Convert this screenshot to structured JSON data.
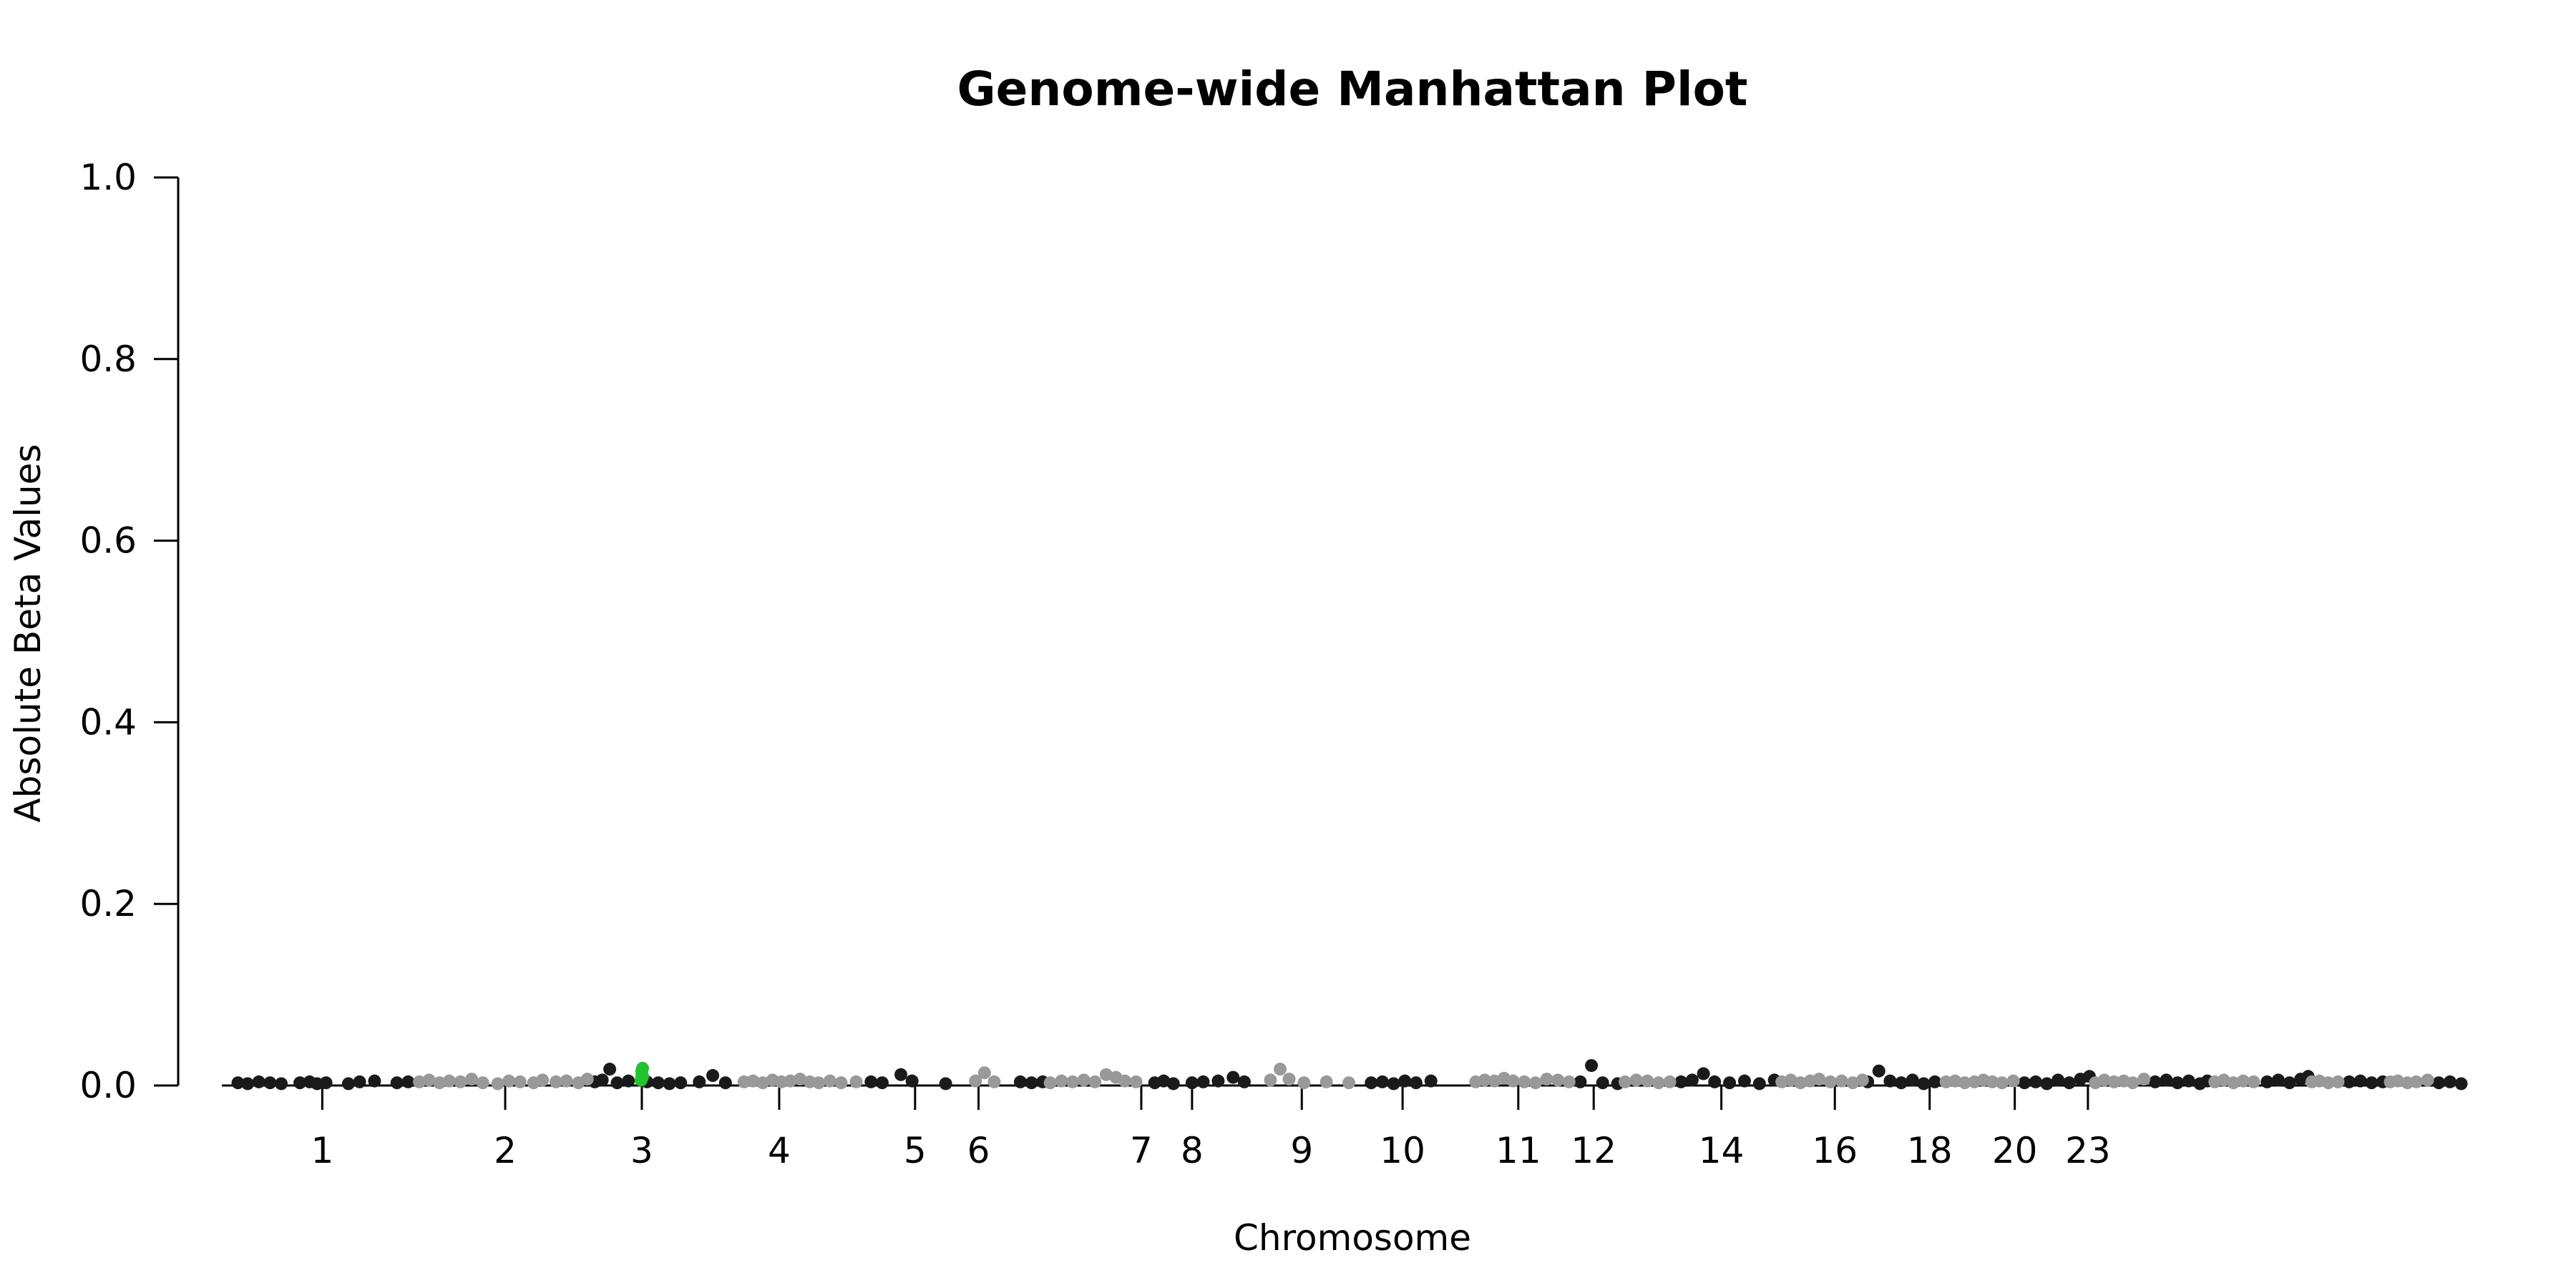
{
  "chart_data": {
    "type": "scatter",
    "title": "Genome-wide Manhattan Plot",
    "xlabel": "Chromosome",
    "ylabel": "Absolute Beta Values",
    "ylim": [
      0,
      1
    ],
    "yticks": [
      "0.0",
      "0.2",
      "0.4",
      "0.6",
      "0.8",
      "1.0"
    ],
    "xlim": [
      0,
      3000
    ],
    "xticks": [
      {
        "label": "1",
        "pos": 125
      },
      {
        "label": "2",
        "pos": 370
      },
      {
        "label": "3",
        "pos": 553
      },
      {
        "label": "4",
        "pos": 737
      },
      {
        "label": "5",
        "pos": 919
      },
      {
        "label": "6",
        "pos": 1004
      },
      {
        "label": "7",
        "pos": 1222
      },
      {
        "label": "8",
        "pos": 1290
      },
      {
        "label": "9",
        "pos": 1437
      },
      {
        "label": "10",
        "pos": 1572
      },
      {
        "label": "11",
        "pos": 1727
      },
      {
        "label": "12",
        "pos": 1828
      },
      {
        "label": "14",
        "pos": 1999
      },
      {
        "label": "16",
        "pos": 2151
      },
      {
        "label": "18",
        "pos": 2278
      },
      {
        "label": "20",
        "pos": 2392
      },
      {
        "label": "23",
        "pos": 2490
      }
    ],
    "chromosome_bounds": [
      0,
      250,
      490,
      690,
      880,
      1060,
      1230,
      1390,
      1530,
      1670,
      1810,
      1945,
      2080,
      2195,
      2300,
      2405,
      2500,
      2580,
      2660,
      2730,
      2790,
      2840,
      2895,
      2960
    ],
    "series": [
      {
        "color": "#1a1a1a",
        "points": [
          [
            12,
            0.003
          ],
          [
            25,
            0.002
          ],
          [
            40,
            0.004
          ],
          [
            55,
            0.003
          ],
          [
            70,
            0.002
          ],
          [
            95,
            0.003
          ],
          [
            108,
            0.004
          ],
          [
            118,
            0.002
          ],
          [
            130,
            0.003
          ],
          [
            160,
            0.002
          ],
          [
            175,
            0.004
          ],
          [
            195,
            0.005
          ],
          [
            225,
            0.003
          ],
          [
            240,
            0.004
          ],
          [
            490,
            0.004
          ],
          [
            500,
            0.006
          ],
          [
            510,
            0.018
          ],
          [
            520,
            0.003
          ],
          [
            535,
            0.005
          ],
          [
            560,
            0.004
          ],
          [
            575,
            0.003
          ],
          [
            590,
            0.002
          ],
          [
            605,
            0.003
          ],
          [
            630,
            0.004
          ],
          [
            648,
            0.011
          ],
          [
            665,
            0.003
          ],
          [
            860,
            0.004
          ],
          [
            875,
            0.003
          ],
          [
            900,
            0.012
          ],
          [
            915,
            0.005
          ],
          [
            960,
            0.002
          ],
          [
            1060,
            0.004
          ],
          [
            1075,
            0.003
          ],
          [
            1090,
            0.004
          ],
          [
            1240,
            0.003
          ],
          [
            1252,
            0.005
          ],
          [
            1265,
            0.002
          ],
          [
            1290,
            0.003
          ],
          [
            1305,
            0.004
          ],
          [
            1325,
            0.005
          ],
          [
            1345,
            0.009
          ],
          [
            1360,
            0.004
          ],
          [
            1530,
            0.003
          ],
          [
            1545,
            0.004
          ],
          [
            1560,
            0.002
          ],
          [
            1575,
            0.005
          ],
          [
            1590,
            0.003
          ],
          [
            1610,
            0.005
          ],
          [
            1810,
            0.004
          ],
          [
            1825,
            0.022
          ],
          [
            1840,
            0.003
          ],
          [
            1860,
            0.002
          ],
          [
            1945,
            0.004
          ],
          [
            1960,
            0.006
          ],
          [
            1975,
            0.013
          ],
          [
            1990,
            0.004
          ],
          [
            2010,
            0.003
          ],
          [
            2030,
            0.005
          ],
          [
            2050,
            0.002
          ],
          [
            2070,
            0.006
          ],
          [
            2195,
            0.004
          ],
          [
            2210,
            0.016
          ],
          [
            2225,
            0.005
          ],
          [
            2240,
            0.003
          ],
          [
            2255,
            0.006
          ],
          [
            2270,
            0.002
          ],
          [
            2285,
            0.004
          ],
          [
            2405,
            0.003
          ],
          [
            2420,
            0.004
          ],
          [
            2435,
            0.002
          ],
          [
            2450,
            0.006
          ],
          [
            2465,
            0.003
          ],
          [
            2480,
            0.007
          ],
          [
            2492,
            0.01
          ],
          [
            2580,
            0.004
          ],
          [
            2595,
            0.006
          ],
          [
            2610,
            0.003
          ],
          [
            2625,
            0.005
          ],
          [
            2640,
            0.002
          ],
          [
            2650,
            0.005
          ],
          [
            2730,
            0.004
          ],
          [
            2745,
            0.006
          ],
          [
            2760,
            0.003
          ],
          [
            2775,
            0.007
          ],
          [
            2785,
            0.01
          ],
          [
            2840,
            0.004
          ],
          [
            2855,
            0.005
          ],
          [
            2870,
            0.003
          ],
          [
            2885,
            0.004
          ],
          [
            2960,
            0.003
          ],
          [
            2975,
            0.004
          ],
          [
            2990,
            0.002
          ]
        ]
      },
      {
        "color": "#999999",
        "points": [
          [
            255,
            0.004
          ],
          [
            268,
            0.006
          ],
          [
            282,
            0.003
          ],
          [
            295,
            0.005
          ],
          [
            310,
            0.004
          ],
          [
            325,
            0.007
          ],
          [
            340,
            0.003
          ],
          [
            360,
            0.002
          ],
          [
            375,
            0.005
          ],
          [
            390,
            0.004
          ],
          [
            408,
            0.003
          ],
          [
            420,
            0.006
          ],
          [
            438,
            0.004
          ],
          [
            452,
            0.005
          ],
          [
            468,
            0.003
          ],
          [
            480,
            0.007
          ],
          [
            690,
            0.004
          ],
          [
            702,
            0.005
          ],
          [
            715,
            0.003
          ],
          [
            728,
            0.006
          ],
          [
            740,
            0.004
          ],
          [
            752,
            0.005
          ],
          [
            765,
            0.007
          ],
          [
            778,
            0.004
          ],
          [
            790,
            0.003
          ],
          [
            805,
            0.005
          ],
          [
            820,
            0.003
          ],
          [
            840,
            0.004
          ],
          [
            1000,
            0.005
          ],
          [
            1012,
            0.014
          ],
          [
            1025,
            0.004
          ],
          [
            1100,
            0.003
          ],
          [
            1115,
            0.005
          ],
          [
            1130,
            0.004
          ],
          [
            1145,
            0.006
          ],
          [
            1160,
            0.004
          ],
          [
            1175,
            0.012
          ],
          [
            1188,
            0.009
          ],
          [
            1200,
            0.005
          ],
          [
            1215,
            0.004
          ],
          [
            1395,
            0.006
          ],
          [
            1408,
            0.018
          ],
          [
            1420,
            0.007
          ],
          [
            1440,
            0.003
          ],
          [
            1470,
            0.004
          ],
          [
            1500,
            0.003
          ],
          [
            1670,
            0.004
          ],
          [
            1682,
            0.006
          ],
          [
            1695,
            0.005
          ],
          [
            1708,
            0.008
          ],
          [
            1720,
            0.005
          ],
          [
            1735,
            0.004
          ],
          [
            1750,
            0.003
          ],
          [
            1765,
            0.007
          ],
          [
            1780,
            0.006
          ],
          [
            1795,
            0.004
          ],
          [
            1870,
            0.004
          ],
          [
            1885,
            0.006
          ],
          [
            1900,
            0.005
          ],
          [
            1915,
            0.003
          ],
          [
            1930,
            0.004
          ],
          [
            2080,
            0.004
          ],
          [
            2092,
            0.006
          ],
          [
            2105,
            0.003
          ],
          [
            2118,
            0.005
          ],
          [
            2130,
            0.007
          ],
          [
            2145,
            0.004
          ],
          [
            2160,
            0.005
          ],
          [
            2175,
            0.003
          ],
          [
            2188,
            0.006
          ],
          [
            2300,
            0.004
          ],
          [
            2312,
            0.005
          ],
          [
            2325,
            0.003
          ],
          [
            2338,
            0.004
          ],
          [
            2350,
            0.006
          ],
          [
            2362,
            0.004
          ],
          [
            2375,
            0.003
          ],
          [
            2390,
            0.005
          ],
          [
            2500,
            0.003
          ],
          [
            2512,
            0.006
          ],
          [
            2525,
            0.004
          ],
          [
            2538,
            0.005
          ],
          [
            2550,
            0.003
          ],
          [
            2565,
            0.007
          ],
          [
            2660,
            0.004
          ],
          [
            2672,
            0.006
          ],
          [
            2685,
            0.003
          ],
          [
            2698,
            0.005
          ],
          [
            2712,
            0.004
          ],
          [
            2790,
            0.004
          ],
          [
            2800,
            0.005
          ],
          [
            2812,
            0.003
          ],
          [
            2825,
            0.004
          ],
          [
            2895,
            0.004
          ],
          [
            2905,
            0.005
          ],
          [
            2918,
            0.003
          ],
          [
            2930,
            0.004
          ],
          [
            2945,
            0.006
          ]
        ]
      },
      {
        "color": "#22c32e",
        "points": [
          [
            553,
            0.008
          ],
          [
            553,
            0.012
          ],
          [
            553,
            0.016
          ],
          [
            554,
            0.019
          ],
          [
            552,
            0.006
          ],
          [
            554,
            0.01
          ]
        ]
      }
    ]
  }
}
